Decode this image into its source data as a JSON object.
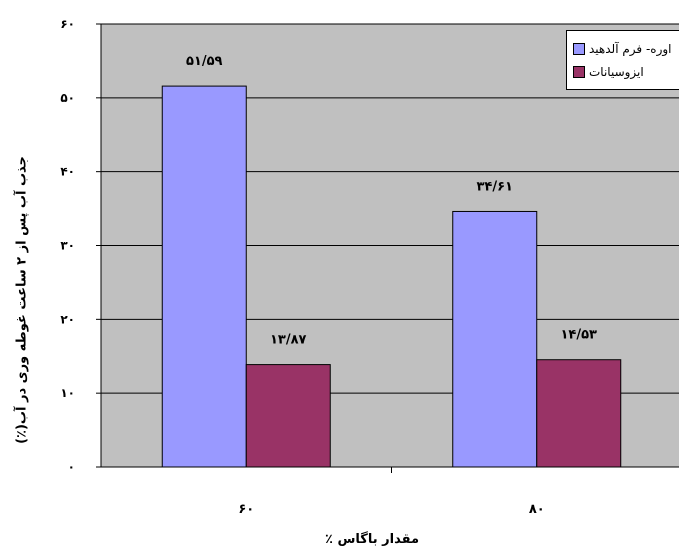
{
  "chart_data": {
    "type": "bar",
    "categories": [
      "۶۰",
      "۸۰"
    ],
    "category_values": [
      60,
      80
    ],
    "series": [
      {
        "name": "اوره- فرم آلدهید",
        "values": [
          51.59,
          34.61
        ],
        "labels": [
          "۵۱/۵۹",
          "۳۴/۶۱"
        ],
        "color": "#9999FF"
      },
      {
        "name": "ایزوسیانات",
        "values": [
          13.87,
          14.53
        ],
        "labels": [
          "۱۳/۸۷",
          "۱۴/۵۳"
        ],
        "color": "#993366"
      }
    ],
    "xlabel": "مقدار باگاس ٪",
    "ylabel": "جذب آب پس از ۲ ساعت غوطه وری در آب(٪)",
    "ylim": [
      0,
      60
    ],
    "yticks": [
      0,
      10,
      20,
      30,
      40,
      50,
      60
    ],
    "ytick_labels": [
      "۰",
      "۱۰",
      "۲۰",
      "۳۰",
      "۴۰",
      "۵۰",
      "۶۰"
    ],
    "grid": true,
    "legend_position": "top-right",
    "plot_background": "#C0C0C0"
  }
}
